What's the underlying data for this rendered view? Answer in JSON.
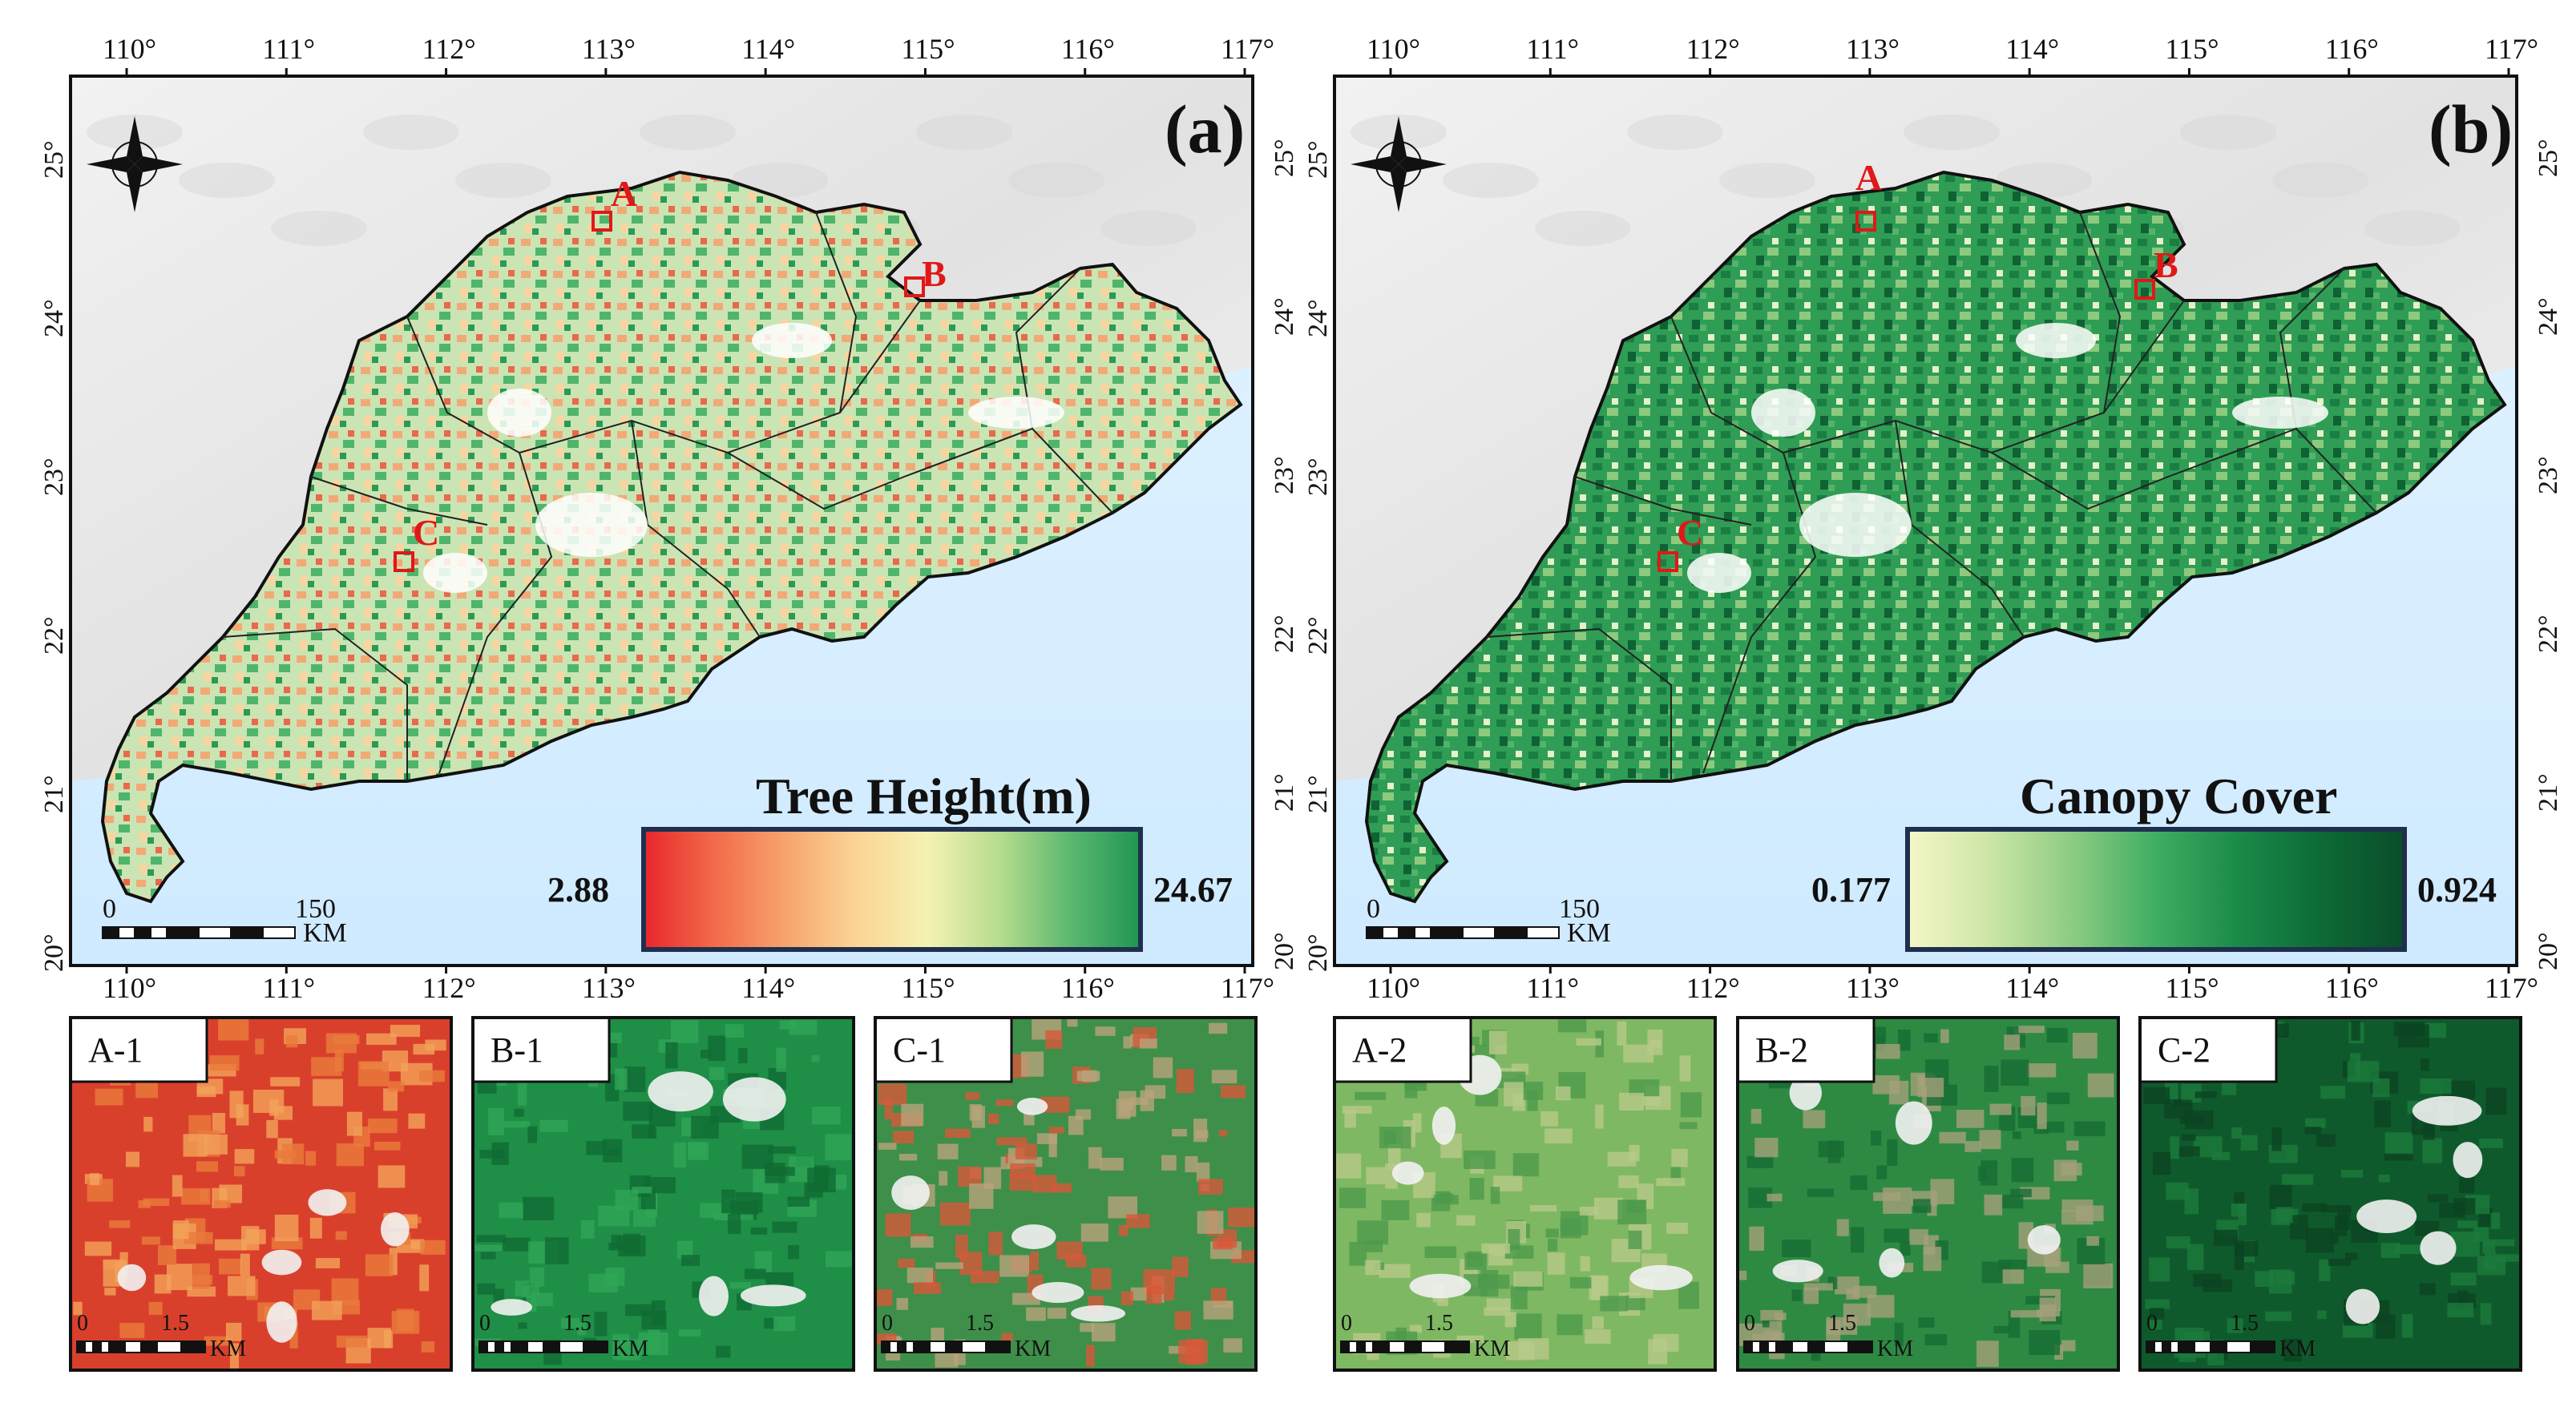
{
  "top_lon_ticks": [
    "110°",
    "111°",
    "112°",
    "113°",
    "114°",
    "115°",
    "116°",
    "117°"
  ],
  "bottom_lon_ticks": [
    "110°",
    "111°",
    "112°",
    "113°",
    "114°",
    "115°",
    "116°",
    "117°"
  ],
  "lat_ticks": [
    "25°",
    "24°",
    "23°",
    "22°",
    "21°",
    "20°"
  ],
  "panel_a": {
    "label": "(a)",
    "legend_title": "Tree Height(m)",
    "legend_min": "2.88",
    "legend_max": "24.67",
    "gradient": [
      "#e8262b",
      "#f26b4a",
      "#f7a46e",
      "#fbd595",
      "#f4f2b3",
      "#b7dd8f",
      "#5cb870",
      "#1f9652"
    ]
  },
  "panel_b": {
    "label": "(b)",
    "legend_title": "Canopy Cover",
    "legend_min": "0.177",
    "legend_max": "0.924",
    "gradient": [
      "#f6f6c8",
      "#cbe6a6",
      "#8ccb82",
      "#3fae62",
      "#1a8a48",
      "#0d6a36",
      "#0a4d2a"
    ]
  },
  "sites": [
    "A",
    "B",
    "C"
  ],
  "scale_bar": {
    "zero": "0",
    "distance": "150",
    "unit": "KM"
  },
  "inset_scale": {
    "zero": "0",
    "distance": "1.5",
    "unit": "KM"
  },
  "insets": [
    {
      "label": "A-1",
      "base": "#d9402c",
      "mid": "#ea7a3c",
      "hi": "#f3a25a"
    },
    {
      "label": "B-1",
      "base": "#1f8e46",
      "mid": "#2fa556",
      "hi": "#0f6b33"
    },
    {
      "label": "C-1",
      "base": "#3e8f4a",
      "mid": "#b9a27a",
      "hi": "#d8583a"
    },
    {
      "label": "A-2",
      "base": "#7fb862",
      "mid": "#b8c98a",
      "hi": "#4e9a4c"
    },
    {
      "label": "B-2",
      "base": "#2e8a43",
      "mid": "#a4a07a",
      "hi": "#176c33"
    },
    {
      "label": "C-2",
      "base": "#0f5a2c",
      "mid": "#1b7a3c",
      "hi": "#0a4422"
    }
  ],
  "colors": {
    "sea": "#d6efff",
    "land_bg": "#ededed",
    "site_box": "#e01818",
    "frame": "#111111",
    "legend_border": "#1f2f4f"
  }
}
